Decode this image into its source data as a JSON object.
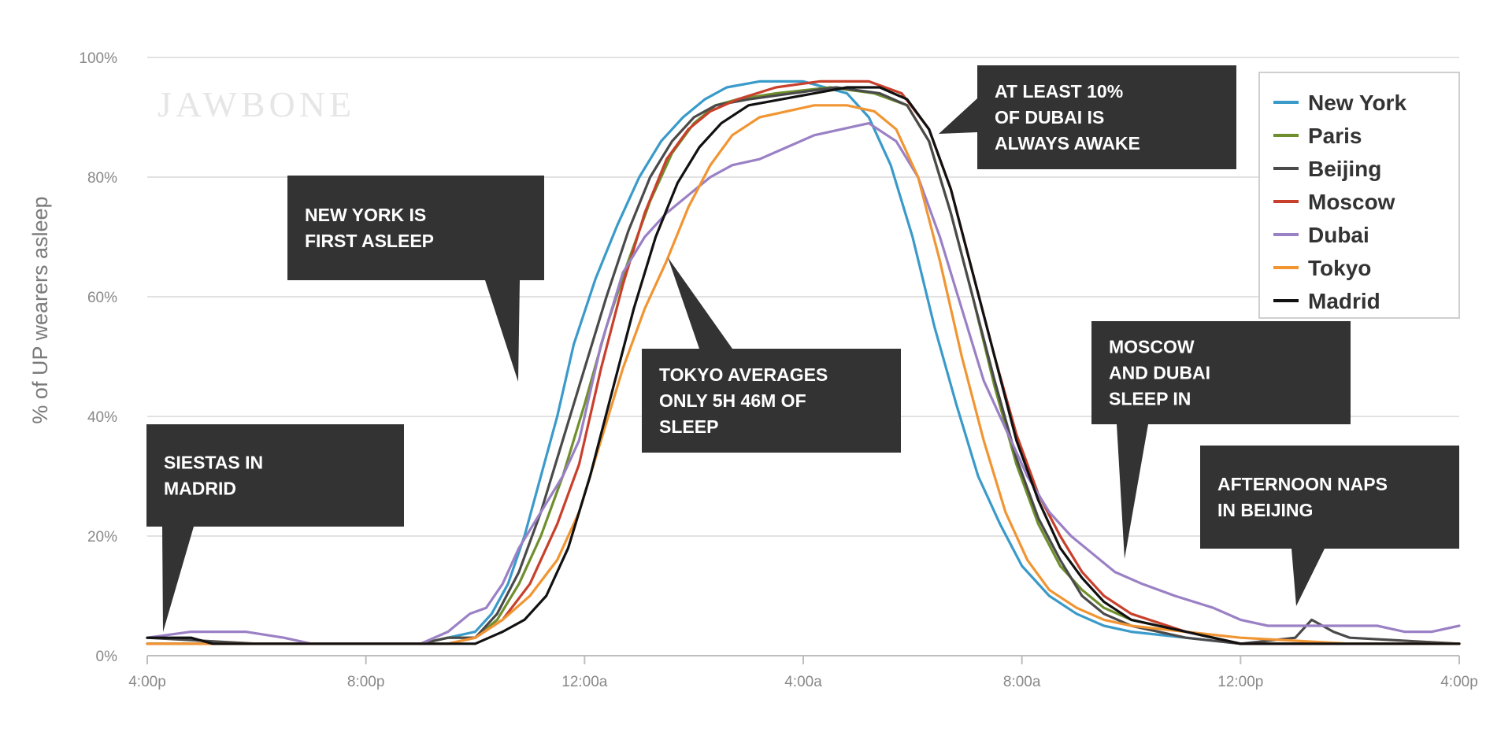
{
  "watermark": "JAWBONE",
  "chart_data": {
    "type": "line",
    "title": "",
    "xlabel": "",
    "ylabel": "% of UP wearers asleep",
    "x_ticks": [
      "4:00p",
      "8:00p",
      "12:00a",
      "4:00a",
      "8:00a",
      "12:00p",
      "4:00p"
    ],
    "y_ticks": [
      "0%",
      "20%",
      "40%",
      "60%",
      "80%",
      "100%"
    ],
    "xlim": [
      0,
      24
    ],
    "ylim": [
      0,
      100
    ],
    "grid": true,
    "legend_position": "top-right",
    "series": [
      {
        "name": "New York",
        "color": "#3a9ac9",
        "points": [
          [
            0,
            2
          ],
          [
            2,
            2
          ],
          [
            4,
            2
          ],
          [
            5,
            2
          ],
          [
            5.5,
            3
          ],
          [
            6,
            4
          ],
          [
            6.3,
            7
          ],
          [
            6.6,
            12
          ],
          [
            6.9,
            20
          ],
          [
            7.2,
            30
          ],
          [
            7.5,
            40
          ],
          [
            7.8,
            52
          ],
          [
            8.2,
            63
          ],
          [
            8.6,
            72
          ],
          [
            9,
            80
          ],
          [
            9.4,
            86
          ],
          [
            9.8,
            90
          ],
          [
            10.2,
            93
          ],
          [
            10.6,
            95
          ],
          [
            11.2,
            96
          ],
          [
            12,
            96
          ],
          [
            12.8,
            94
          ],
          [
            13.2,
            90
          ],
          [
            13.6,
            82
          ],
          [
            14,
            70
          ],
          [
            14.4,
            55
          ],
          [
            14.8,
            42
          ],
          [
            15.2,
            30
          ],
          [
            15.6,
            22
          ],
          [
            16,
            15
          ],
          [
            16.5,
            10
          ],
          [
            17,
            7
          ],
          [
            17.5,
            5
          ],
          [
            18,
            4
          ],
          [
            19,
            3
          ],
          [
            20,
            2
          ],
          [
            22,
            2
          ],
          [
            24,
            2
          ]
        ]
      },
      {
        "name": "Paris",
        "color": "#6e8f2c",
        "points": [
          [
            0,
            2
          ],
          [
            2,
            2
          ],
          [
            4,
            2
          ],
          [
            5,
            2
          ],
          [
            5.5,
            3
          ],
          [
            6,
            3
          ],
          [
            6.4,
            6
          ],
          [
            6.8,
            12
          ],
          [
            7.2,
            20
          ],
          [
            7.6,
            30
          ],
          [
            8,
            42
          ],
          [
            8.4,
            55
          ],
          [
            8.8,
            66
          ],
          [
            9.2,
            76
          ],
          [
            9.6,
            84
          ],
          [
            10,
            89
          ],
          [
            10.4,
            92
          ],
          [
            10.8,
            93
          ],
          [
            11.5,
            94
          ],
          [
            12.5,
            95
          ],
          [
            13.3,
            94
          ],
          [
            13.9,
            92
          ],
          [
            14.3,
            86
          ],
          [
            14.7,
            74
          ],
          [
            15.1,
            60
          ],
          [
            15.5,
            45
          ],
          [
            15.9,
            32
          ],
          [
            16.3,
            22
          ],
          [
            16.7,
            15
          ],
          [
            17.1,
            11
          ],
          [
            17.5,
            8
          ],
          [
            18,
            6
          ],
          [
            19,
            4
          ],
          [
            20,
            2
          ],
          [
            22,
            2
          ],
          [
            24,
            2
          ]
        ]
      },
      {
        "name": "Beijing",
        "color": "#4a4a4a",
        "points": [
          [
            0,
            3
          ],
          [
            2,
            2
          ],
          [
            4,
            2
          ],
          [
            5,
            2
          ],
          [
            5.5,
            3
          ],
          [
            6,
            3
          ],
          [
            6.4,
            7
          ],
          [
            6.8,
            14
          ],
          [
            7.2,
            24
          ],
          [
            7.6,
            36
          ],
          [
            8,
            48
          ],
          [
            8.4,
            60
          ],
          [
            8.8,
            71
          ],
          [
            9.2,
            80
          ],
          [
            9.6,
            86
          ],
          [
            10,
            90
          ],
          [
            10.4,
            92
          ],
          [
            11,
            93
          ],
          [
            11.8,
            94
          ],
          [
            12.6,
            95
          ],
          [
            13.4,
            94
          ],
          [
            13.9,
            92
          ],
          [
            14.3,
            86
          ],
          [
            14.7,
            74
          ],
          [
            15.1,
            60
          ],
          [
            15.5,
            46
          ],
          [
            15.9,
            33
          ],
          [
            16.3,
            23
          ],
          [
            16.7,
            16
          ],
          [
            17.1,
            10
          ],
          [
            17.5,
            7
          ],
          [
            18,
            5
          ],
          [
            19,
            3
          ],
          [
            20,
            2
          ],
          [
            21,
            3
          ],
          [
            21.3,
            6
          ],
          [
            21.7,
            4
          ],
          [
            22,
            3
          ],
          [
            24,
            2
          ]
        ]
      },
      {
        "name": "Moscow",
        "color": "#c8402c",
        "points": [
          [
            0,
            2
          ],
          [
            2,
            2
          ],
          [
            4,
            2
          ],
          [
            5,
            2
          ],
          [
            5.5,
            2
          ],
          [
            6,
            3
          ],
          [
            6.5,
            6
          ],
          [
            7,
            12
          ],
          [
            7.5,
            22
          ],
          [
            7.9,
            32
          ],
          [
            8.3,
            48
          ],
          [
            8.7,
            62
          ],
          [
            9.1,
            74
          ],
          [
            9.5,
            83
          ],
          [
            9.9,
            88
          ],
          [
            10.3,
            91
          ],
          [
            10.8,
            93
          ],
          [
            11.5,
            95
          ],
          [
            12.3,
            96
          ],
          [
            13.2,
            96
          ],
          [
            13.8,
            94
          ],
          [
            14.3,
            88
          ],
          [
            14.7,
            78
          ],
          [
            15.1,
            64
          ],
          [
            15.5,
            50
          ],
          [
            15.9,
            37
          ],
          [
            16.3,
            27
          ],
          [
            16.7,
            20
          ],
          [
            17.1,
            14
          ],
          [
            17.5,
            10
          ],
          [
            18,
            7
          ],
          [
            19,
            4
          ],
          [
            20,
            2
          ],
          [
            22,
            2
          ],
          [
            24,
            2
          ]
        ]
      },
      {
        "name": "Dubai",
        "color": "#9a80c4",
        "points": [
          [
            0,
            3
          ],
          [
            0.8,
            4
          ],
          [
            1.8,
            4
          ],
          [
            2.5,
            3
          ],
          [
            3,
            2
          ],
          [
            4,
            2
          ],
          [
            5,
            2
          ],
          [
            5.5,
            4
          ],
          [
            5.9,
            7
          ],
          [
            6.2,
            8
          ],
          [
            6.5,
            12
          ],
          [
            6.8,
            18
          ],
          [
            7.2,
            24
          ],
          [
            7.6,
            30
          ],
          [
            7.9,
            36
          ],
          [
            8.3,
            52
          ],
          [
            8.7,
            64
          ],
          [
            9.1,
            70
          ],
          [
            9.5,
            74
          ],
          [
            9.9,
            77
          ],
          [
            10.3,
            80
          ],
          [
            10.7,
            82
          ],
          [
            11.2,
            83
          ],
          [
            11.7,
            85
          ],
          [
            12.2,
            87
          ],
          [
            12.7,
            88
          ],
          [
            13.2,
            89
          ],
          [
            13.7,
            86
          ],
          [
            14.1,
            80
          ],
          [
            14.5,
            70
          ],
          [
            14.9,
            58
          ],
          [
            15.3,
            46
          ],
          [
            15.7,
            38
          ],
          [
            16.1,
            30
          ],
          [
            16.5,
            24
          ],
          [
            16.9,
            20
          ],
          [
            17.3,
            17
          ],
          [
            17.7,
            14
          ],
          [
            18.2,
            12
          ],
          [
            18.8,
            10
          ],
          [
            19.5,
            8
          ],
          [
            20,
            6
          ],
          [
            20.5,
            5
          ],
          [
            21.5,
            5
          ],
          [
            22.5,
            5
          ],
          [
            23,
            4
          ],
          [
            23.5,
            4
          ],
          [
            24,
            5
          ]
        ]
      },
      {
        "name": "Tokyo",
        "color": "#f19533",
        "points": [
          [
            0,
            2
          ],
          [
            2,
            2
          ],
          [
            4,
            2
          ],
          [
            5,
            2
          ],
          [
            5.5,
            2
          ],
          [
            6,
            3
          ],
          [
            6.5,
            6
          ],
          [
            7,
            10
          ],
          [
            7.5,
            16
          ],
          [
            7.9,
            24
          ],
          [
            8.3,
            36
          ],
          [
            8.7,
            48
          ],
          [
            9.1,
            58
          ],
          [
            9.5,
            66
          ],
          [
            9.9,
            75
          ],
          [
            10.3,
            82
          ],
          [
            10.7,
            87
          ],
          [
            11.2,
            90
          ],
          [
            11.7,
            91
          ],
          [
            12.2,
            92
          ],
          [
            12.8,
            92
          ],
          [
            13.3,
            91
          ],
          [
            13.7,
            88
          ],
          [
            14.1,
            80
          ],
          [
            14.5,
            66
          ],
          [
            14.9,
            50
          ],
          [
            15.3,
            36
          ],
          [
            15.7,
            24
          ],
          [
            16.1,
            16
          ],
          [
            16.5,
            11
          ],
          [
            17,
            8
          ],
          [
            17.5,
            6
          ],
          [
            18,
            5
          ],
          [
            19,
            4
          ],
          [
            20,
            3
          ],
          [
            22,
            2
          ],
          [
            24,
            2
          ]
        ]
      },
      {
        "name": "Madrid",
        "color": "#111111",
        "points": [
          [
            0,
            3
          ],
          [
            0.8,
            3
          ],
          [
            1.2,
            2
          ],
          [
            2,
            2
          ],
          [
            4,
            2
          ],
          [
            5,
            2
          ],
          [
            5.5,
            2
          ],
          [
            6,
            2
          ],
          [
            6.5,
            4
          ],
          [
            6.9,
            6
          ],
          [
            7.3,
            10
          ],
          [
            7.7,
            18
          ],
          [
            8.1,
            30
          ],
          [
            8.5,
            44
          ],
          [
            8.9,
            58
          ],
          [
            9.3,
            70
          ],
          [
            9.7,
            79
          ],
          [
            10.1,
            85
          ],
          [
            10.5,
            89
          ],
          [
            11,
            92
          ],
          [
            11.6,
            93
          ],
          [
            12.2,
            94
          ],
          [
            12.8,
            95
          ],
          [
            13.4,
            95
          ],
          [
            13.9,
            93
          ],
          [
            14.3,
            88
          ],
          [
            14.7,
            78
          ],
          [
            15.1,
            64
          ],
          [
            15.5,
            50
          ],
          [
            15.9,
            36
          ],
          [
            16.3,
            26
          ],
          [
            16.7,
            18
          ],
          [
            17.1,
            13
          ],
          [
            17.5,
            9
          ],
          [
            18,
            6
          ],
          [
            19,
            4
          ],
          [
            20,
            2
          ],
          [
            22,
            2
          ],
          [
            24,
            2
          ]
        ]
      }
    ],
    "annotations": [
      {
        "id": "siestas",
        "lines": [
          "SIESTAS IN",
          "MADRID"
        ]
      },
      {
        "id": "newyork",
        "lines": [
          "NEW YORK IS",
          "FIRST ASLEEP"
        ]
      },
      {
        "id": "tokyo",
        "lines": [
          "TOKYO AVERAGES",
          "ONLY 5H 46M OF",
          "SLEEP"
        ]
      },
      {
        "id": "dubai",
        "lines": [
          "AT LEAST 10%",
          "OF DUBAI IS",
          "ALWAYS AWAKE"
        ]
      },
      {
        "id": "moscow",
        "lines": [
          "MOSCOW",
          "AND DUBAI",
          "SLEEP IN"
        ]
      },
      {
        "id": "beijing",
        "lines": [
          "AFTERNOON NAPS",
          "IN BEIJING"
        ]
      }
    ]
  }
}
